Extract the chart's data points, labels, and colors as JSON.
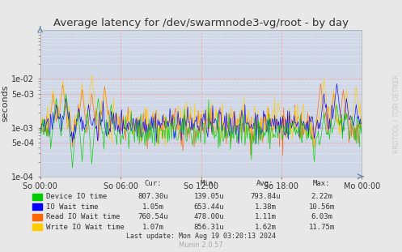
{
  "title": "Average latency for /dev/swarmnode3-vg/root - by day",
  "ylabel": "seconds",
  "xlabel_ticks": [
    "So 00:00",
    "So 06:00",
    "So 12:00",
    "So 18:00",
    "Mo 00:00"
  ],
  "bg_color": "#e8e8e8",
  "plot_bg_color": "#d0d8e8",
  "grid_color_major": "#ff9999",
  "grid_color_minor": "#ffffff",
  "legend": [
    {
      "label": "Device IO time",
      "color": "#00cc00",
      "cur": "807.30u",
      "min": "139.05u",
      "avg": "793.84u",
      "max": "2.22m"
    },
    {
      "label": "IO Wait time",
      "color": "#0000ff",
      "cur": "1.05m",
      "min": "653.44u",
      "avg": "1.38m",
      "max": "10.56m"
    },
    {
      "label": "Read IO Wait time",
      "color": "#ff6600",
      "cur": "760.54u",
      "min": "478.00u",
      "avg": "1.11m",
      "max": "6.03m"
    },
    {
      "label": "Write IO Wait time",
      "color": "#ffcc00",
      "cur": "1.07m",
      "min": "856.31u",
      "avg": "1.62m",
      "max": "11.75m"
    }
  ],
  "watermark": "RRDTOOL / TOBI OETIKER",
  "footer": "Munin 2.0.57",
  "last_update": "Last update: Mon Aug 19 03:20:13 2024",
  "n_points": 400,
  "seed": 42
}
